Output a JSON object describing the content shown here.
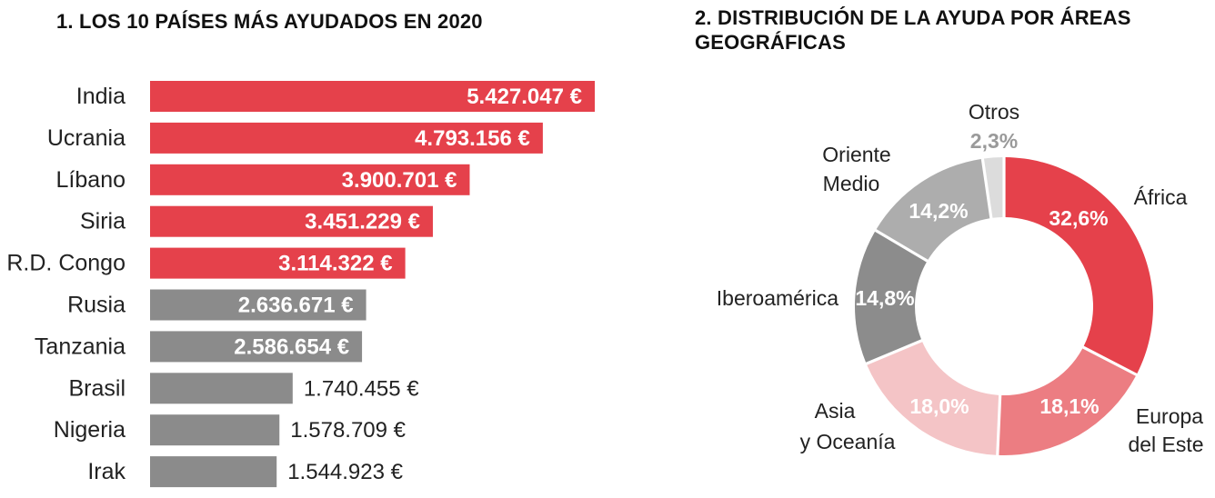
{
  "titles": {
    "left": "1. LOS 10 PAÍSES MÁS AYUDADOS EN 2020",
    "right": "2. DISTRIBUCIÓN DE LA AYUDA POR ÁREAS GEOGRÁFICAS"
  },
  "colors": {
    "highlight": "#e5414b",
    "neutral": "#8b8b8b",
    "donut": [
      "#e5414b",
      "#ec7d82",
      "#f4c4c6",
      "#8c8c8c",
      "#adadad",
      "#dcdcdc"
    ]
  },
  "chart_data": [
    {
      "type": "bar",
      "orientation": "horizontal",
      "title": "1. LOS 10 PAÍSES MÁS AYUDADOS EN 2020",
      "categories": [
        "India",
        "Ucrania",
        "Líbano",
        "Siria",
        "R.D. Congo",
        "Rusia",
        "Tanzania",
        "Brasil",
        "Nigeria",
        "Irak"
      ],
      "values": [
        5427047,
        4793156,
        3900701,
        3451229,
        3114322,
        2636671,
        2586654,
        1740455,
        1578709,
        1544923
      ],
      "labels": [
        "5.427.047 €",
        "4.793.156 €",
        "3.900.701 €",
        "3.451.229 €",
        "3.114.322 €",
        "2.636.671 €",
        "2.586.654 €",
        "1.740.455 €",
        "1.578.709 €",
        "1.544.923 €"
      ],
      "highlight_count": 5,
      "xlim": [
        0,
        5427047
      ],
      "xlabel": "",
      "ylabel": ""
    },
    {
      "type": "pie",
      "donut": true,
      "title": "2. DISTRIBUCIÓN DE LA AYUDA POR ÁREAS GEOGRÁFICAS",
      "segments": [
        {
          "label": "África",
          "value": 32.6,
          "pct": "32,6%"
        },
        {
          "label": "Europa del Este",
          "value": 18.1,
          "pct": "18,1%"
        },
        {
          "label": "Asia y Oceanía",
          "value": 18.0,
          "pct": "18,0%"
        },
        {
          "label": "Iberoamérica",
          "value": 14.8,
          "pct": "14,8%"
        },
        {
          "label": "Oriente Medio",
          "value": 14.2,
          "pct": "14,2%"
        },
        {
          "label": "Otros",
          "value": 2.3,
          "pct": "2,3%"
        }
      ]
    }
  ]
}
